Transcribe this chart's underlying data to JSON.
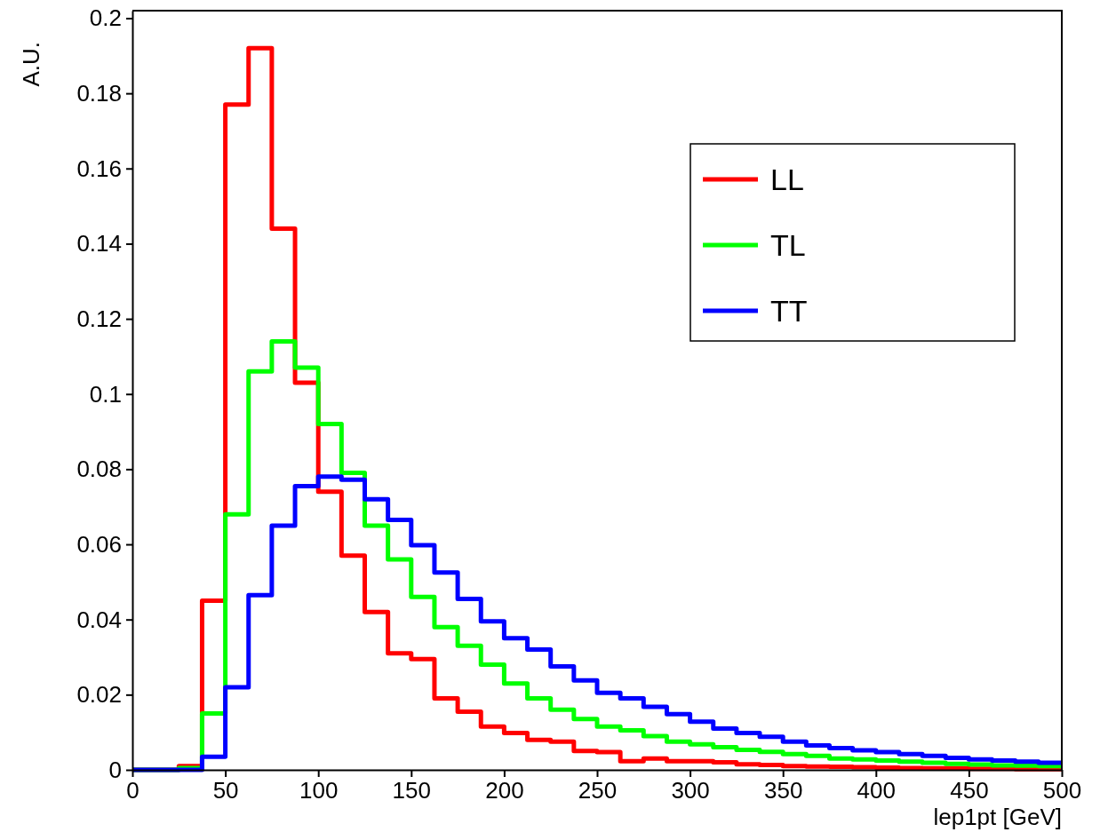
{
  "chart_data": {
    "type": "histogram",
    "xlabel": "lep1pt [GeV]",
    "ylabel": "A.U.",
    "bins": [
      0,
      12.5,
      25,
      37.5,
      50,
      62.5,
      75,
      87.5,
      100,
      112.5,
      125,
      137.5,
      150,
      162.5,
      175,
      187.5,
      200,
      212.5,
      225,
      237.5,
      250,
      262.5,
      275,
      287.5,
      300,
      312.5,
      325,
      337.5,
      350,
      362.5,
      375,
      387.5,
      400,
      412.5,
      425,
      437.5,
      450,
      462.5,
      475,
      487.5,
      500
    ],
    "series": [
      {
        "name": "LL",
        "color": "#ff0000",
        "values": [
          0,
          0,
          0.001,
          0.045,
          0.177,
          0.192,
          0.144,
          0.103,
          0.074,
          0.057,
          0.042,
          0.031,
          0.0295,
          0.019,
          0.0155,
          0.0115,
          0.0098,
          0.008,
          0.0075,
          0.005,
          0.0047,
          0.0023,
          0.003,
          0.0023,
          0.0023,
          0.002,
          0.0015,
          0.0013,
          0.001,
          0.0009,
          0.0008,
          0.0007,
          0.0006,
          0.0005,
          0.0004,
          0.0004,
          0.0003,
          0.0003,
          0.0002,
          0.0002
        ]
      },
      {
        "name": "TL",
        "color": "#00ff00",
        "values": [
          0,
          0,
          0.0005,
          0.015,
          0.068,
          0.106,
          0.114,
          0.107,
          0.092,
          0.079,
          0.065,
          0.056,
          0.046,
          0.038,
          0.033,
          0.028,
          0.023,
          0.019,
          0.016,
          0.0135,
          0.0115,
          0.0105,
          0.009,
          0.0075,
          0.0068,
          0.006,
          0.0053,
          0.0048,
          0.0042,
          0.0037,
          0.003,
          0.0028,
          0.0025,
          0.0022,
          0.0019,
          0.0016,
          0.0014,
          0.0012,
          0.0011,
          0.001
        ]
      },
      {
        "name": "TT",
        "color": "#0000ff",
        "values": [
          0,
          0,
          0,
          0.0035,
          0.022,
          0.0465,
          0.065,
          0.0755,
          0.078,
          0.0772,
          0.072,
          0.0665,
          0.0598,
          0.0525,
          0.0455,
          0.0395,
          0.035,
          0.032,
          0.0275,
          0.0238,
          0.0205,
          0.019,
          0.0168,
          0.0148,
          0.0128,
          0.011,
          0.0098,
          0.0088,
          0.0075,
          0.0065,
          0.0058,
          0.0052,
          0.0047,
          0.0042,
          0.0037,
          0.0032,
          0.0028,
          0.0025,
          0.0022,
          0.0019
        ]
      }
    ],
    "xlim": [
      0,
      500
    ],
    "ylim": [
      0,
      0.202
    ],
    "xticks": [
      0,
      50,
      100,
      150,
      200,
      250,
      300,
      350,
      400,
      450,
      500
    ],
    "yticks": [
      0,
      0.02,
      0.04,
      0.06,
      0.08,
      0.1,
      0.12,
      0.14,
      0.16,
      0.18,
      0.2
    ],
    "legend": "top right",
    "grid": false
  }
}
